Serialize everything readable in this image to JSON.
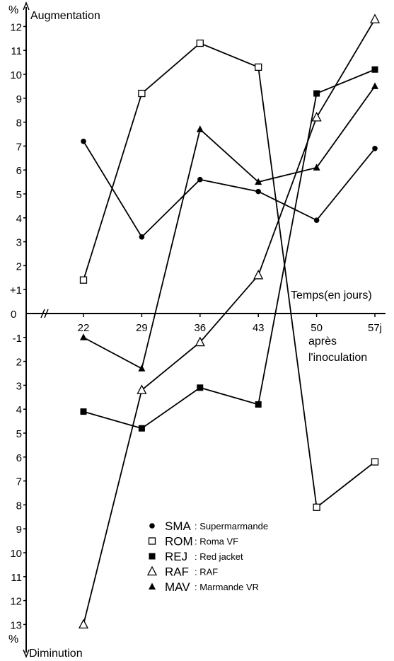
{
  "chart_data": {
    "type": "line",
    "y_top_label": "Augmentation",
    "y_bottom_label": "Diminution",
    "y_unit": "%",
    "x_label": "Temps(en jours)",
    "x_label_suffix_1": "après",
    "x_label_suffix_2": "l'inoculation",
    "x": [
      22,
      29,
      36,
      43,
      50,
      57
    ],
    "x_tick_labels": [
      "22",
      "29",
      "36",
      "43",
      "50",
      "57j"
    ],
    "y_tick_labels_pos": [
      "+1",
      "2",
      "3",
      "4",
      "5",
      "6",
      "7",
      "8",
      "9",
      "10",
      "11",
      "12"
    ],
    "y_tick_labels_neg": [
      "-1",
      "2",
      "3",
      "4",
      "5",
      "6",
      "7",
      "8",
      "9",
      "10",
      "11",
      "12",
      "13"
    ],
    "zero_label": "0",
    "ylim": [
      -13,
      12
    ],
    "series": [
      {
        "code": "SMA",
        "name": "Supermarmande",
        "marker": "filled-circle",
        "values": [
          7.2,
          3.2,
          5.6,
          5.1,
          3.9,
          6.9
        ]
      },
      {
        "code": "ROM",
        "name": "Roma VF",
        "marker": "open-square",
        "values": [
          1.4,
          9.2,
          11.3,
          10.3,
          -8.1,
          -6.2
        ]
      },
      {
        "code": "REJ",
        "name": "Red jacket",
        "marker": "filled-square",
        "values": [
          -4.1,
          -4.8,
          -3.1,
          -3.8,
          9.2,
          10.2
        ]
      },
      {
        "code": "RAF",
        "name": "RAF",
        "marker": "open-triangle",
        "values": [
          -13.0,
          -3.2,
          -1.2,
          1.6,
          8.2,
          12.3
        ]
      },
      {
        "code": "MAV",
        "name": "Marmande VR",
        "marker": "filled-triangle",
        "values": [
          -1.0,
          -2.3,
          7.7,
          5.5,
          6.1,
          9.5
        ]
      }
    ],
    "legend_placement": "bottom-center",
    "grid": false
  }
}
